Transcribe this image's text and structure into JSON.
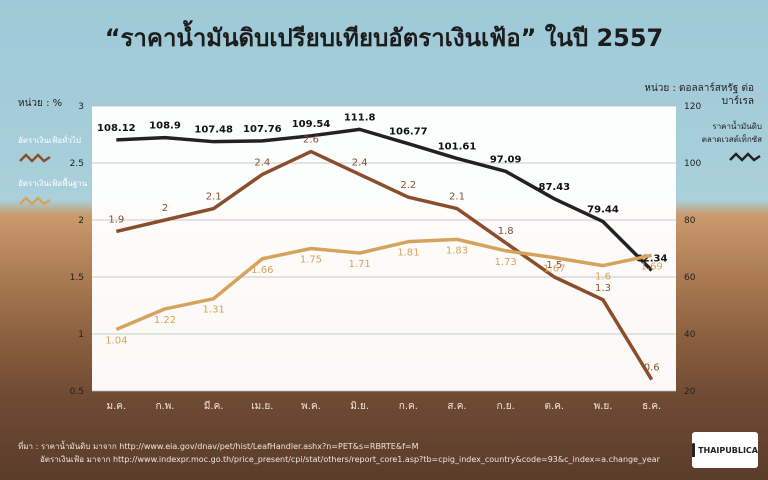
{
  "title": "“ราคาน้ำมันดิบเปรียบเทียบอัตราเงินเฟ้อ” ในปี 2557",
  "left_axis_unit": "หน่วย : %",
  "right_axis_unit": "หน่วย : ดอลลาร์สหรัฐ ต่อบาร์เรล",
  "legend": {
    "headline": "อัตราเงินเฟ้อทั่วไป",
    "core": "อัตราเงินเฟ้อพื้นฐาน",
    "oil": "ราคาน้ำมันดิบ ตลาดเวสต์เท็กซัส"
  },
  "colors": {
    "oil": "#222222",
    "headline": "#8a4e2c",
    "core": "#d6a35c"
  },
  "footer": {
    "line1": "ที่มา : ราคาน้ำมันดิบ มาจาก http://www.eia.gov/dnav/pet/hist/LeafHandler.ashx?n=PET&s=RBRTE&f=M",
    "line2": "อัตราเงินเฟ้อ มาจาก http://www.indexpr.moc.go.th/price_present/cpi/stat/others/report_core1.asp?tb=cpig_index_country&code=93&c_index=a.change_year"
  },
  "logo_text": "THAIPUBLICA",
  "chart_data": {
    "type": "line",
    "categories": [
      "ม.ค.",
      "ก.พ.",
      "มี.ค.",
      "เม.ย.",
      "พ.ค.",
      "มิ.ย.",
      "ก.ค.",
      "ส.ค.",
      "ก.ย.",
      "ต.ค.",
      "พ.ย.",
      "ธ.ค."
    ],
    "left_axis": {
      "ylim": [
        0.5,
        3
      ],
      "ticks": [
        "0.5",
        "1",
        "1.5",
        "2",
        "2.5",
        "3"
      ]
    },
    "right_axis": {
      "ylim": [
        20,
        120
      ],
      "ticks": [
        "20",
        "40",
        "60",
        "80",
        "100",
        "120"
      ]
    },
    "series": [
      {
        "name": "ราคาน้ำมันดิบ ตลาดเวสต์เท็กซัส",
        "axis": "right",
        "values": [
          108.12,
          108.9,
          107.48,
          107.76,
          109.54,
          111.8,
          106.77,
          101.61,
          97.09,
          87.43,
          79.44,
          62.34
        ],
        "labels": [
          "108.12",
          "108.9",
          "107.48",
          "107.76",
          "109.54",
          "111.8",
          "106.77",
          "101.61",
          "97.09",
          "87.43",
          "79.44",
          "62.34"
        ]
      },
      {
        "name": "อัตราเงินเฟ้อทั่วไป",
        "axis": "left",
        "values": [
          1.9,
          2.0,
          2.1,
          2.4,
          2.6,
          2.4,
          2.2,
          2.1,
          1.8,
          1.5,
          1.3,
          0.6
        ],
        "labels": [
          "1.9",
          "2",
          "2.1",
          "2.4",
          "2.6",
          "2.4",
          "2.2",
          "2.1",
          "1.8",
          "1.5",
          "1.3",
          "0.6"
        ]
      },
      {
        "name": "อัตราเงินเฟ้อพื้นฐาน",
        "axis": "left",
        "values": [
          1.04,
          1.22,
          1.31,
          1.66,
          1.75,
          1.71,
          1.81,
          1.83,
          1.73,
          1.67,
          1.6,
          1.69
        ],
        "labels": [
          "1.04",
          "1.22",
          "1.31",
          "1.66",
          "1.75",
          "1.71",
          "1.81",
          "1.83",
          "1.73",
          "1.67",
          "1.6",
          "1.69"
        ]
      }
    ]
  }
}
